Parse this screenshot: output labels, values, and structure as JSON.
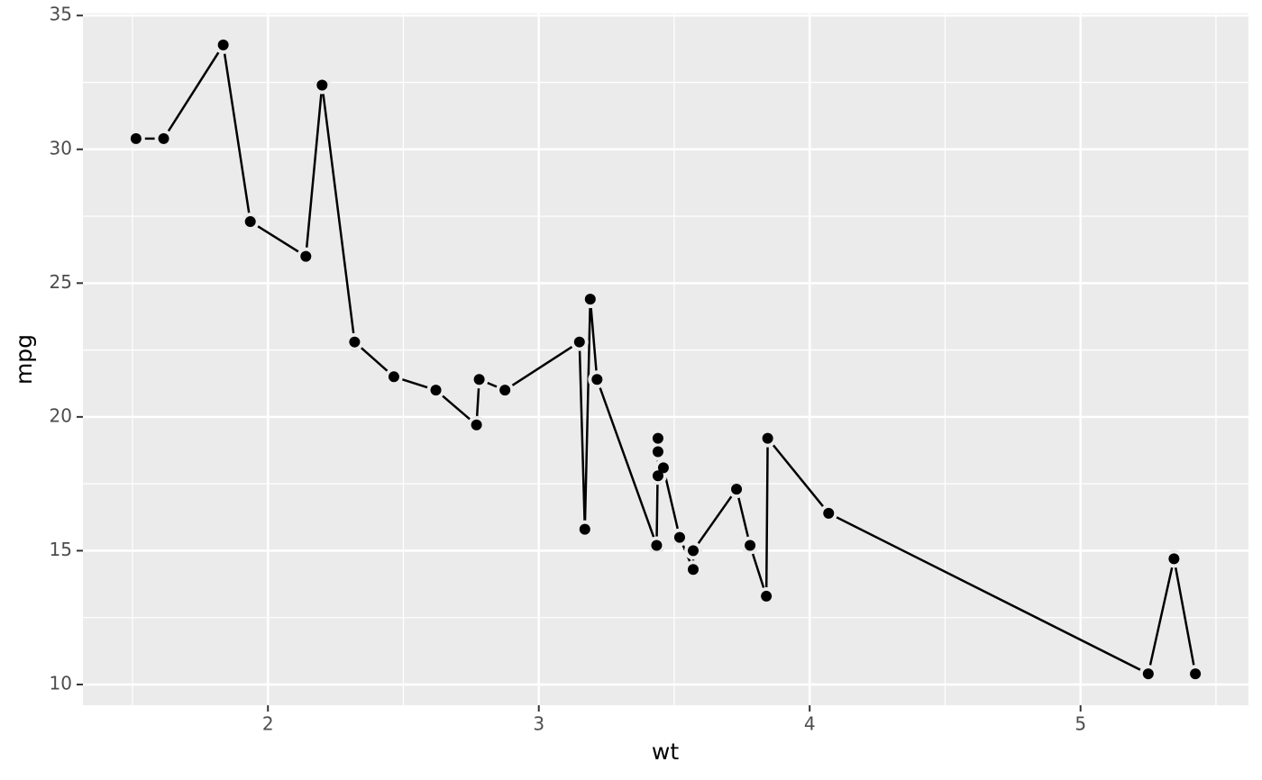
{
  "chart_data": {
    "type": "line",
    "x_label": "wt",
    "y_label": "mpg",
    "x": [
      1.513,
      1.615,
      1.835,
      1.935,
      2.14,
      2.2,
      2.32,
      2.465,
      2.62,
      2.77,
      2.78,
      2.875,
      3.15,
      3.17,
      3.19,
      3.215,
      3.435,
      3.44,
      3.44,
      3.44,
      3.46,
      3.52,
      3.57,
      3.57,
      3.73,
      3.78,
      3.84,
      3.845,
      4.07,
      5.25,
      5.345,
      5.424
    ],
    "series": [
      {
        "color": "#000000",
        "values": [
          30.4,
          30.4,
          33.9,
          27.3,
          26.0,
          32.4,
          22.8,
          21.5,
          21.0,
          19.7,
          21.4,
          21.0,
          22.8,
          15.8,
          24.4,
          21.4,
          15.2,
          18.7,
          19.2,
          17.8,
          18.1,
          15.5,
          14.3,
          15.0,
          17.3,
          15.2,
          13.3,
          19.2,
          16.4,
          10.4,
          14.7,
          10.4
        ]
      }
    ],
    "xlim": [
      1.317,
      5.62
    ],
    "ylim": [
      9.225,
      35.075
    ],
    "xticks": [
      2,
      3,
      4,
      5
    ],
    "yticks": [
      10,
      15,
      20,
      25,
      30,
      35
    ],
    "x_minor_grid": [
      1.5,
      2.5,
      3.5,
      4.5,
      5.5
    ],
    "y_minor_grid": [
      12.5,
      17.5,
      22.5,
      27.5,
      32.5
    ],
    "grid": true,
    "panel_color": "#ebebeb",
    "points": true
  }
}
